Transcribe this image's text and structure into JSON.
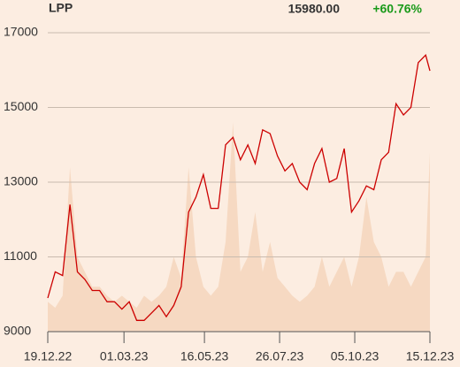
{
  "chart_data": {
    "type": "line",
    "title": "LPP",
    "last_value": "15980.00",
    "change": "+60.76%",
    "change_color": "#1a9a1a",
    "x": [
      "19.12.22",
      "26.12.22",
      "02.01.23",
      "09.01.23",
      "16.01.23",
      "23.01.23",
      "30.01.23",
      "06.02.23",
      "13.02.23",
      "20.02.23",
      "27.02.23",
      "06.03.23",
      "13.03.23",
      "20.03.23",
      "27.03.23",
      "03.04.23",
      "10.04.23",
      "17.04.23",
      "24.04.23",
      "01.05.23",
      "08.05.23",
      "15.05.23",
      "22.05.23",
      "29.05.23",
      "05.06.23",
      "12.06.23",
      "19.06.23",
      "26.06.23",
      "03.07.23",
      "10.07.23",
      "17.07.23",
      "24.07.23",
      "31.07.23",
      "07.08.23",
      "14.08.23",
      "21.08.23",
      "28.08.23",
      "04.09.23",
      "11.09.23",
      "18.09.23",
      "25.09.23",
      "02.10.23",
      "09.10.23",
      "16.10.23",
      "23.10.23",
      "30.10.23",
      "06.11.23",
      "13.11.23",
      "20.11.23",
      "27.11.23",
      "04.12.23",
      "11.12.23",
      "15.12.23"
    ],
    "series": [
      {
        "name": "LPP",
        "color": "#cc0000",
        "values": [
          9900,
          10600,
          10500,
          12400,
          10600,
          10400,
          10100,
          10100,
          9800,
          9800,
          9600,
          9800,
          9300,
          9300,
          9500,
          9700,
          9400,
          9700,
          10200,
          12200,
          12600,
          13200,
          12300,
          12300,
          14000,
          14200,
          13600,
          14000,
          13500,
          14400,
          14300,
          13700,
          13300,
          13500,
          13000,
          12800,
          13500,
          13900,
          13000,
          13100,
          13900,
          12200,
          12500,
          12900,
          12800,
          13600,
          13800,
          15100,
          14800,
          15000,
          16200,
          16400,
          15980
        ]
      },
      {
        "name": "Volume",
        "color": "#f6d9c2",
        "axis": "y2",
        "values": [
          10,
          8,
          12,
          55,
          25,
          20,
          15,
          15,
          12,
          10,
          12,
          10,
          8,
          12,
          10,
          12,
          15,
          25,
          18,
          55,
          25,
          15,
          12,
          15,
          30,
          70,
          20,
          25,
          40,
          20,
          30,
          18,
          15,
          12,
          10,
          12,
          15,
          25,
          15,
          20,
          25,
          15,
          25,
          45,
          30,
          25,
          15,
          20,
          20,
          15,
          20,
          25,
          60
        ]
      }
    ],
    "xlim": [
      "19.12.22",
      "15.12.23"
    ],
    "xticks": [
      "19.12.22",
      "01.03.23",
      "16.05.23",
      "26.07.23",
      "05.10.23",
      "15.12.23"
    ],
    "ylim": [
      9000,
      17000
    ],
    "yticks": [
      9000,
      11000,
      13000,
      15000,
      17000
    ],
    "y2lim": [
      0,
      100
    ],
    "grid": true
  }
}
